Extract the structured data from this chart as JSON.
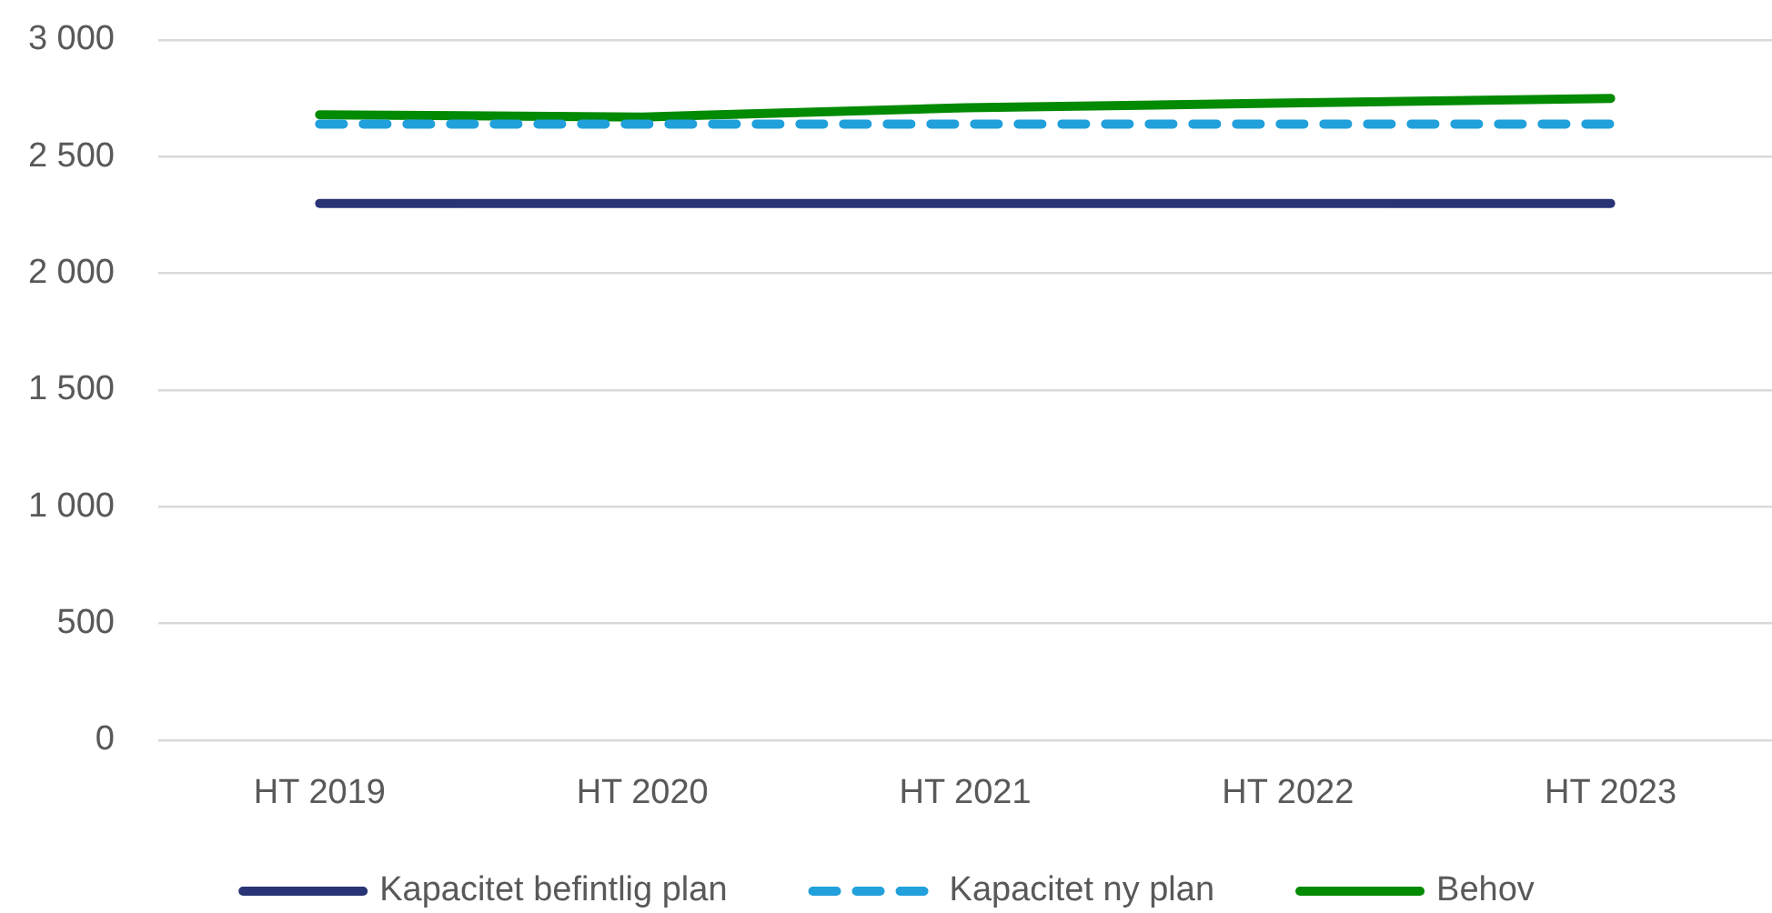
{
  "chart_data": {
    "type": "line",
    "categories": [
      "HT 2019",
      "HT 2020",
      "HT 2021",
      "HT 2022",
      "HT 2023"
    ],
    "series": [
      {
        "name": "Kapacitet befintlig plan",
        "color": "#283476",
        "values": [
          2300,
          2300,
          2300,
          2300,
          2300
        ]
      },
      {
        "name": "Kapacitet ny plan",
        "color": "#21a0db",
        "values": [
          2640,
          2640,
          2640,
          2640,
          2640
        ],
        "line_style": "dashed"
      },
      {
        "name": "Behov",
        "color": "#038a03",
        "values": [
          2680,
          2670,
          2710,
          2730,
          2750
        ]
      }
    ],
    "ylim": [
      0,
      3000
    ],
    "yticks": [
      0,
      500,
      {
        "value": 1000,
        "label": "1 000"
      },
      {
        "value": 1500,
        "label": "1 500"
      },
      {
        "value": 2000,
        "label": "2 000"
      },
      {
        "value": 2500,
        "label": "2 500"
      },
      {
        "value": 3000,
        "label": "3 000"
      }
    ],
    "grid": "y",
    "legend": "bottom",
    "marker": "none",
    "line_style": "solid"
  }
}
